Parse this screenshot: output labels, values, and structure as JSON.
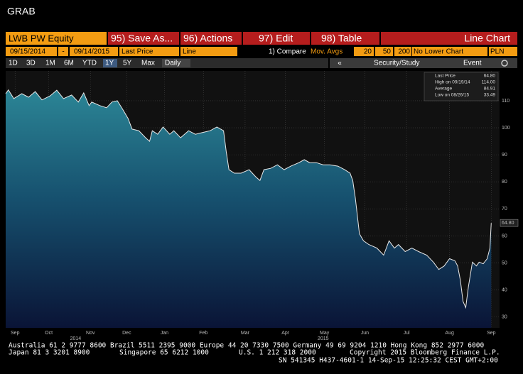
{
  "app": "GRAB",
  "toolbar": {
    "ticker": "LWB PW Equity",
    "buttons": [
      "95) Save As...",
      "96) Actions",
      "97) Edit",
      "98) Table"
    ],
    "chart_label": "Line Chart"
  },
  "settings": {
    "start": "09/15/2014",
    "separator": "-",
    "end": "09/14/2015",
    "field": "Last Price",
    "style": "Line",
    "compare": "1) Compare",
    "mov_avgs": "Mov. Avgs",
    "ma": [
      "20",
      "50",
      "200"
    ],
    "lower": "No Lower Chart",
    "currency": "PLN"
  },
  "ranges": [
    "1D",
    "3D",
    "1M",
    "6M",
    "YTD",
    "1Y",
    "5Y",
    "Max"
  ],
  "interval": "Daily",
  "nav": {
    "collapse": "«",
    "security": "Security/Study",
    "event": "Event"
  },
  "chart_data": {
    "type": "area",
    "x": [
      0,
      2,
      6,
      12,
      17,
      22,
      27,
      33,
      38,
      43,
      49,
      54,
      58,
      62,
      64,
      70,
      75,
      79,
      83,
      87,
      91,
      94,
      99,
      104,
      107,
      109,
      113,
      117,
      122,
      125,
      130,
      136,
      141,
      146,
      152,
      157,
      162,
      164,
      166,
      170,
      175,
      181,
      186,
      189,
      192,
      197,
      202,
      207,
      212,
      218,
      222,
      226,
      231,
      236,
      241,
      247,
      252,
      256,
      258,
      260,
      263,
      266,
      270,
      276,
      281,
      285,
      289,
      292,
      297,
      302,
      307,
      313,
      318,
      322,
      326,
      330,
      334,
      336,
      338,
      340,
      342,
      344,
      347,
      350,
      352,
      355,
      358,
      360,
      361
    ],
    "series": [
      {
        "name": "Last Price",
        "color": "#2f8e9c",
        "values": [
          112.6,
          114.0,
          110.8,
          112.6,
          111.3,
          113.4,
          110.3,
          111.8,
          113.9,
          110.8,
          112.1,
          109.5,
          112.9,
          108.2,
          109.5,
          108.2,
          107.4,
          109.5,
          110.0,
          106.8,
          103.4,
          99.5,
          98.9,
          96.3,
          95.0,
          98.9,
          97.6,
          100.3,
          97.6,
          98.9,
          96.3,
          98.9,
          97.6,
          98.2,
          98.9,
          100.3,
          98.9,
          91.1,
          84.5,
          83.2,
          83.2,
          84.5,
          81.8,
          80.5,
          84.5,
          85.0,
          86.3,
          84.5,
          85.8,
          87.1,
          88.2,
          87.1,
          87.1,
          86.3,
          86.3,
          85.8,
          84.5,
          83.2,
          80.5,
          73.9,
          60.8,
          58.2,
          56.8,
          55.5,
          52.9,
          58.2,
          55.5,
          56.8,
          54.2,
          55.5,
          54.2,
          52.9,
          50.3,
          47.6,
          48.9,
          51.6,
          50.8,
          48.9,
          43.7,
          35.8,
          33.5,
          41.1,
          50.3,
          48.9,
          50.3,
          49.7,
          51.6,
          55.5,
          64.8
        ]
      }
    ],
    "xlim": [
      0,
      364
    ],
    "xticks": [
      {
        "value": 7,
        "label": "Sep"
      },
      {
        "value": 32,
        "label": "Oct"
      },
      {
        "value": 63,
        "label": "Nov"
      },
      {
        "value": 90,
        "label": "Dec"
      },
      {
        "value": 118,
        "label": "Jan"
      },
      {
        "value": 147,
        "label": "Feb"
      },
      {
        "value": 178,
        "label": "Mar"
      },
      {
        "value": 208,
        "label": "Apr"
      },
      {
        "value": 237,
        "label": "May"
      },
      {
        "value": 267,
        "label": "Jun"
      },
      {
        "value": 298,
        "label": "Jul"
      },
      {
        "value": 330,
        "label": "Aug"
      },
      {
        "value": 361,
        "label": "Sep"
      }
    ],
    "ylim": [
      26,
      121
    ],
    "yticks": [
      30,
      40,
      50,
      60,
      70,
      80,
      90,
      100,
      110
    ],
    "grid": true,
    "annotations": [
      {
        "text": "2014",
        "x": 52
      },
      {
        "text": "2015",
        "x": 236
      }
    ],
    "legend": [
      {
        "label": "Last Price",
        "value": "64.80"
      },
      {
        "label": "High on 09/19/14",
        "value": "114.00"
      },
      {
        "label": "Average",
        "value": "84.91"
      },
      {
        "label": "Low on 08/26/15",
        "value": "33.49"
      }
    ],
    "last_tag": "64.80"
  },
  "footer": {
    "line1": "Australia 61 2 9777 8600 Brazil 5511 2395 9000 Europe 44 20 7330 7500 Germany 49 69 9204 1210 Hong Kong 852 2977 6000",
    "line2": [
      "Japan 81 3 3201 8900",
      "Singapore 65 6212 1000",
      "U.S. 1 212 318 2000",
      "Copyright 2015 Bloomberg Finance L.P."
    ],
    "line3": "SN 541345 H437-4601-1 14-Sep-15 12:25:32 CEST GMT+2:00"
  }
}
